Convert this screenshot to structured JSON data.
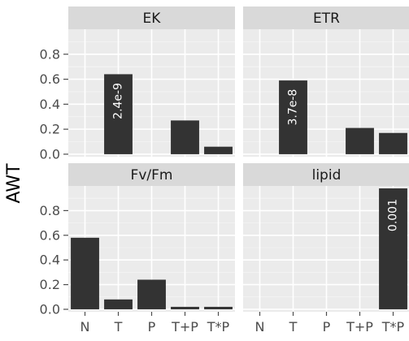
{
  "chart_data": {
    "type": "bar",
    "layout": "facet-grid-2x2",
    "ylabel": "AWT",
    "xlabel": "",
    "categories": [
      "N",
      "T",
      "P",
      "T+P",
      "T*P"
    ],
    "y_ticks": [
      "0.0",
      "0.2",
      "0.4",
      "0.6",
      "0.8"
    ],
    "ylim": [
      -0.02,
      1.0
    ],
    "grid": true,
    "colors": {
      "panel_background": "#ebebeb",
      "grid_line": "#ffffff",
      "strip_background": "#d9d9d9",
      "bar": "#333333",
      "bar_label": "#ffffff"
    },
    "panels": [
      {
        "title": "EK",
        "values": [
          0,
          0.64,
          0,
          0.27,
          0.06
        ],
        "labels": [
          {
            "category": "T",
            "text": "2.4e-9"
          }
        ]
      },
      {
        "title": "ETR",
        "values": [
          0,
          0.59,
          0,
          0.21,
          0.17
        ],
        "labels": [
          {
            "category": "T",
            "text": "3.7e-8"
          }
        ]
      },
      {
        "title": "Fv/Fm",
        "values": [
          0.58,
          0.08,
          0.24,
          0.02,
          0.02
        ],
        "labels": []
      },
      {
        "title": "lipid",
        "values": [
          0,
          0,
          0,
          0,
          0.98
        ],
        "labels": [
          {
            "category": "T*P",
            "text": "0.001"
          }
        ]
      }
    ]
  }
}
